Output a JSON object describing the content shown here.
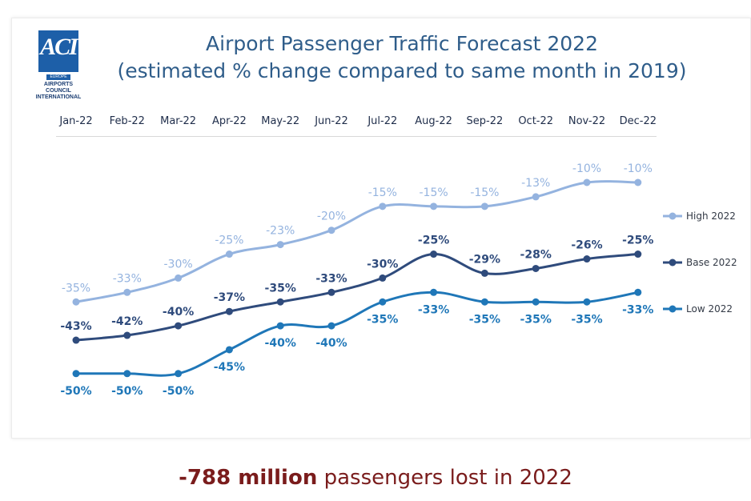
{
  "logo": {
    "letters": "ACI",
    "sub": "EUROPE",
    "text_line1": "AIRPORTS COUNCIL",
    "text_line2": "INTERNATIONAL"
  },
  "title_line1": "Airport Passenger Traffic Forecast 2022",
  "title_line2": "(estimated % change compared to same month in 2019)",
  "footer": {
    "bold": "-788 million",
    "rest": "passengers lost in 2022"
  },
  "colors": {
    "high": "#94b3df",
    "base": "#2f4b7c",
    "low": "#1f77b8"
  },
  "chart_data": {
    "type": "line",
    "title": "Airport Passenger Traffic Forecast 2022 (estimated % change compared to same month in 2019)",
    "categories": [
      "Jan-22",
      "Feb-22",
      "Mar-22",
      "Apr-22",
      "May-22",
      "Jun-22",
      "Jul-22",
      "Aug-22",
      "Sep-22",
      "Oct-22",
      "Nov-22",
      "Dec-22"
    ],
    "series": [
      {
        "name": "High 2022",
        "values": [
          -35,
          -33,
          -30,
          -25,
          -23,
          -20,
          -15,
          -15,
          -15,
          -13,
          -10,
          -10
        ]
      },
      {
        "name": "Base 2022",
        "values": [
          -43,
          -42,
          -40,
          -37,
          -35,
          -33,
          -30,
          -25,
          -29,
          -28,
          -26,
          -25
        ]
      },
      {
        "name": "Low 2022",
        "values": [
          -50,
          -50,
          -50,
          -45,
          -40,
          -40,
          -35,
          -33,
          -35,
          -35,
          -35,
          -33
        ]
      }
    ],
    "labels": {
      "High 2022": [
        "-35%",
        "-33%",
        "-30%",
        "-25%",
        "-23%",
        "-20%",
        "-15%",
        "-15%",
        "-15%",
        "-13%",
        "-10%",
        "-10%"
      ],
      "Base 2022": [
        "-43%",
        "-42%",
        "-40%",
        "-37%",
        "-35%",
        "-33%",
        "-30%",
        "-25%",
        "-29%",
        "-28%",
        "-26%",
        "-25%"
      ],
      "Low 2022": [
        "-50%",
        "-50%",
        "-50%",
        "-45%",
        "-40%",
        "-40%",
        "-35%",
        "-33%",
        "-35%",
        "-35%",
        "-35%",
        "-33%"
      ]
    },
    "legend_position": "right",
    "grid": false
  }
}
